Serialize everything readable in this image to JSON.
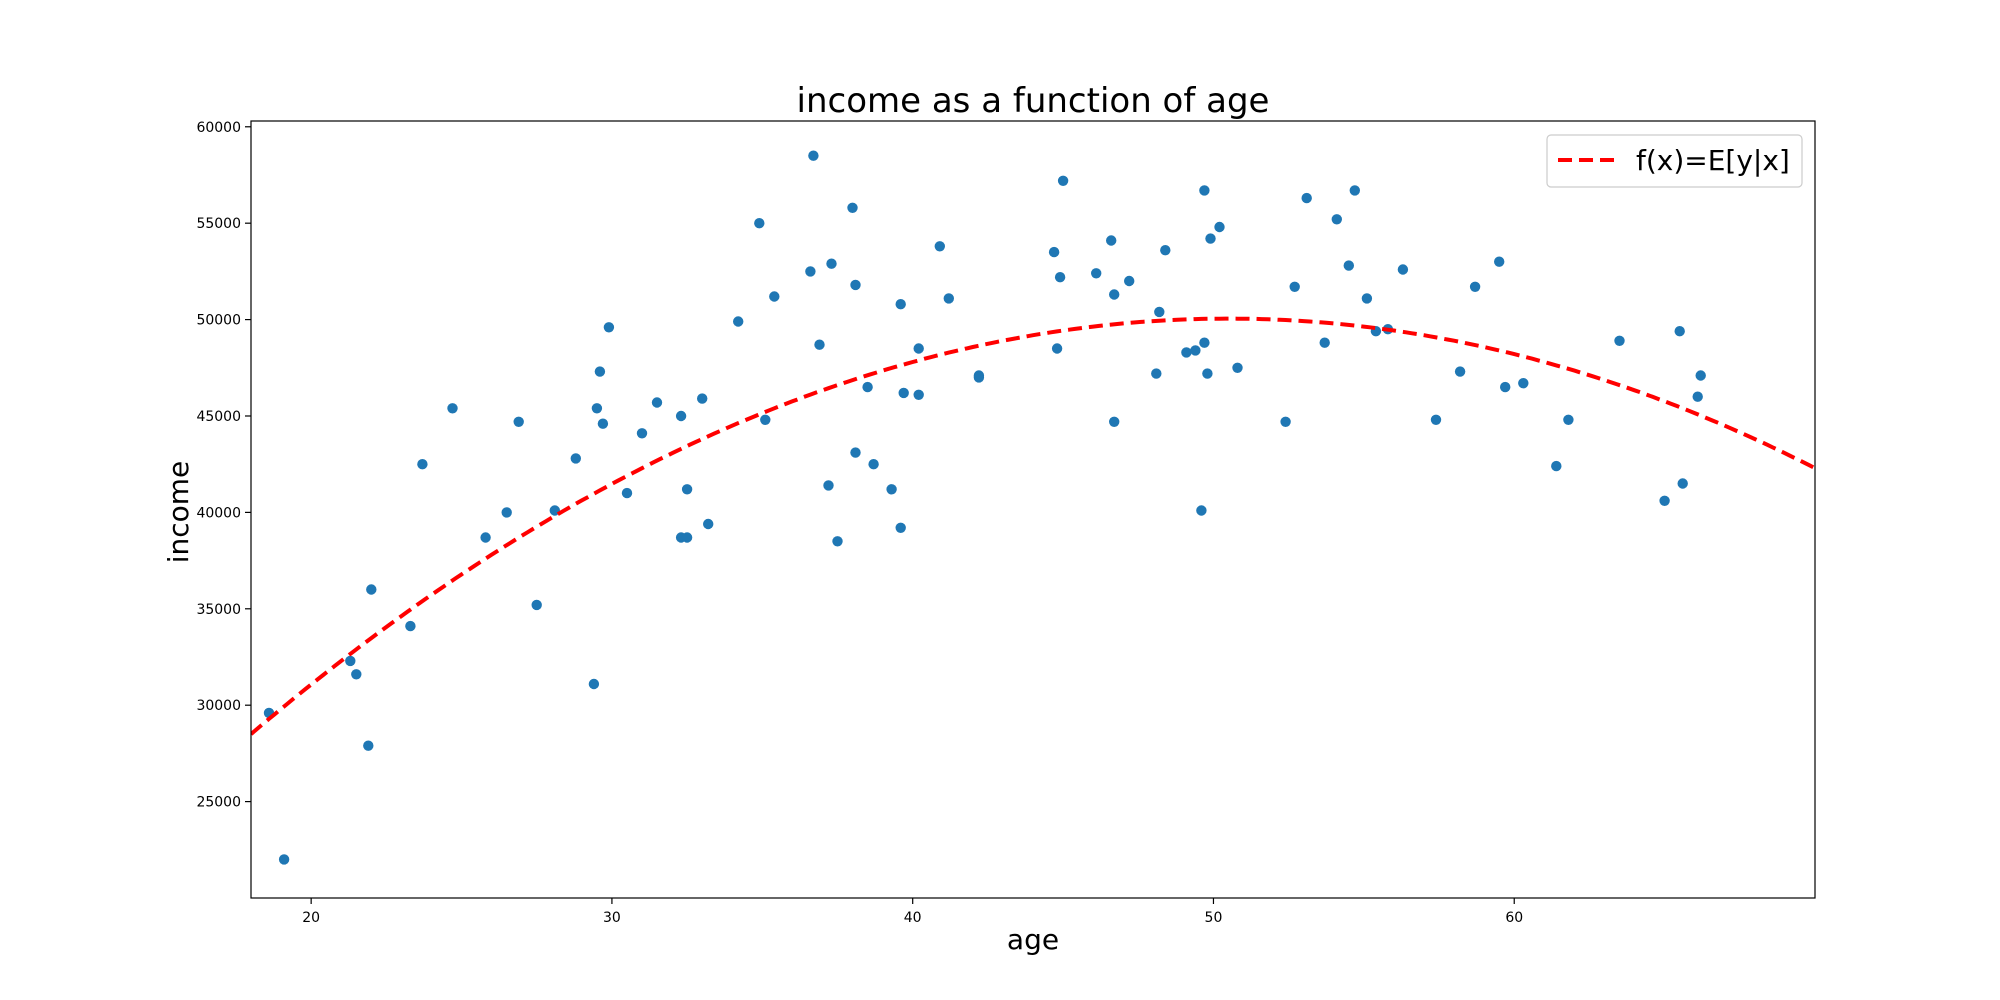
{
  "chart_data": {
    "type": "scatter",
    "title": "income as a function of age",
    "xlabel": "age",
    "ylabel": "income",
    "xlim": [
      18,
      70
    ],
    "ylim": [
      20000,
      60300
    ],
    "xticks": [
      20,
      30,
      40,
      50,
      60
    ],
    "yticks": [
      25000,
      30000,
      35000,
      40000,
      45000,
      50000,
      55000,
      60000
    ],
    "colors": {
      "points": "#1f77b4",
      "curve": "#ff0000"
    },
    "legend": {
      "label": "f(x)=E[y|x]",
      "position": "top-right"
    },
    "curve": {
      "name": "f(x)=E[y|x]",
      "style": "dashed",
      "formula": "50050 - 20.4*(x-50.5)^2",
      "vertex": [
        50.5,
        50050
      ],
      "curvature": 20.4
    },
    "points": [
      [
        18.6,
        29600
      ],
      [
        19.1,
        22000
      ],
      [
        21.3,
        32300
      ],
      [
        21.5,
        31600
      ],
      [
        21.9,
        27900
      ],
      [
        22.0,
        36000
      ],
      [
        23.3,
        34100
      ],
      [
        23.7,
        42500
      ],
      [
        24.7,
        45400
      ],
      [
        25.8,
        38700
      ],
      [
        26.5,
        40000
      ],
      [
        26.9,
        44700
      ],
      [
        27.5,
        35200
      ],
      [
        28.1,
        40100
      ],
      [
        28.8,
        42800
      ],
      [
        29.4,
        31100
      ],
      [
        29.5,
        45400
      ],
      [
        29.6,
        47300
      ],
      [
        29.7,
        44600
      ],
      [
        29.9,
        49600
      ],
      [
        30.5,
        41000
      ],
      [
        31.0,
        44100
      ],
      [
        31.5,
        45700
      ],
      [
        32.3,
        45000
      ],
      [
        32.3,
        38700
      ],
      [
        32.5,
        41200
      ],
      [
        32.5,
        38700
      ],
      [
        33.0,
        45900
      ],
      [
        33.2,
        39400
      ],
      [
        34.2,
        49900
      ],
      [
        34.9,
        55000
      ],
      [
        35.1,
        44800
      ],
      [
        35.4,
        51200
      ],
      [
        36.6,
        52500
      ],
      [
        36.7,
        58500
      ],
      [
        36.9,
        48700
      ],
      [
        37.2,
        41400
      ],
      [
        37.3,
        52900
      ],
      [
        37.5,
        38500
      ],
      [
        38.0,
        55800
      ],
      [
        38.1,
        51800
      ],
      [
        38.1,
        43100
      ],
      [
        38.5,
        46500
      ],
      [
        38.7,
        42500
      ],
      [
        39.3,
        41200
      ],
      [
        39.6,
        39200
      ],
      [
        39.6,
        50800
      ],
      [
        39.7,
        46200
      ],
      [
        40.2,
        48500
      ],
      [
        40.2,
        46100
      ],
      [
        40.9,
        53800
      ],
      [
        41.2,
        51100
      ],
      [
        42.2,
        47000
      ],
      [
        42.2,
        47100
      ],
      [
        44.7,
        53500
      ],
      [
        44.8,
        48500
      ],
      [
        44.9,
        52200
      ],
      [
        45.0,
        57200
      ],
      [
        46.1,
        52400
      ],
      [
        46.6,
        54100
      ],
      [
        46.7,
        44700
      ],
      [
        46.7,
        51300
      ],
      [
        47.2,
        52000
      ],
      [
        48.1,
        47200
      ],
      [
        48.2,
        50400
      ],
      [
        48.4,
        53600
      ],
      [
        49.1,
        48300
      ],
      [
        49.4,
        48400
      ],
      [
        49.6,
        40100
      ],
      [
        49.7,
        48800
      ],
      [
        49.7,
        56700
      ],
      [
        49.8,
        47200
      ],
      [
        49.9,
        54200
      ],
      [
        50.2,
        54800
      ],
      [
        50.8,
        47500
      ],
      [
        52.4,
        44700
      ],
      [
        52.7,
        51700
      ],
      [
        53.1,
        56300
      ],
      [
        53.7,
        48800
      ],
      [
        54.1,
        55200
      ],
      [
        54.5,
        52800
      ],
      [
        54.7,
        56700
      ],
      [
        55.1,
        51100
      ],
      [
        55.4,
        49400
      ],
      [
        55.8,
        49500
      ],
      [
        56.3,
        52600
      ],
      [
        57.4,
        44800
      ],
      [
        58.2,
        47300
      ],
      [
        58.7,
        51700
      ],
      [
        59.5,
        53000
      ],
      [
        59.7,
        46500
      ],
      [
        60.3,
        46700
      ],
      [
        61.4,
        42400
      ],
      [
        61.8,
        44800
      ],
      [
        63.5,
        48900
      ],
      [
        65.0,
        40600
      ],
      [
        65.5,
        49400
      ],
      [
        65.6,
        41500
      ],
      [
        66.1,
        46000
      ],
      [
        66.2,
        47100
      ]
    ]
  }
}
